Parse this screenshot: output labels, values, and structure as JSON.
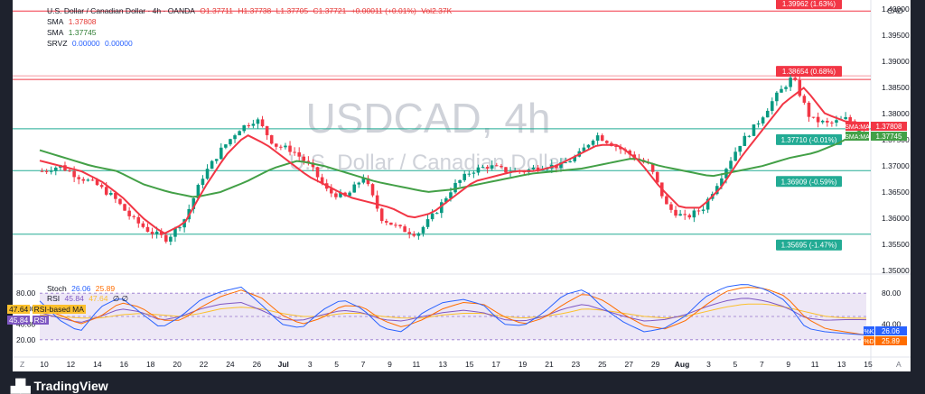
{
  "header": {
    "symbol_desc": "U.S. Dollar / Canadian Dollar · 4h · OANDA",
    "ohlc": {
      "o": "O1.37711",
      "h": "H1.37738",
      "l": "L1.37705",
      "c": "C1.37721",
      "chg": "+0.00011 (+0.01%)",
      "vol": "Vol2.37K"
    },
    "sma1": {
      "label": "SMA",
      "value": "1.37808"
    },
    "sma2": {
      "label": "SMA",
      "value": "1.37745"
    },
    "srvz": {
      "label": "SRVZ",
      "v1": "0.00000",
      "v2": "0.00000"
    },
    "currency": "CAD"
  },
  "watermark": {
    "symbol": "USDCAD, 4h",
    "name": "U.S. Dollar / Canadian Dollar"
  },
  "stoch_legend": {
    "label": "Stoch",
    "k": "26.06",
    "d": "25.89"
  },
  "rsi_legend": {
    "label": "RSI",
    "v1": "45.84",
    "v2": "47.64",
    "v3": "∅ ∅"
  },
  "rsi_ma_tag": {
    "value": "47.64",
    "label": "RSI-based MA"
  },
  "rsi_tag": {
    "value": "45.84",
    "label": "RSI"
  },
  "branding": {
    "logo_text": "TradingView"
  },
  "chart_data": [
    {
      "type": "candlestick",
      "ylim": [
        1.35,
        1.4
      ],
      "yticks": [
        "1.40000",
        "1.39500",
        "1.39000",
        "1.38500",
        "1.38000",
        "1.37500",
        "1.37000",
        "1.36500",
        "1.36000",
        "1.35500",
        "1.35000"
      ],
      "xticks": [
        "10",
        "12",
        "14",
        "16",
        "18",
        "20",
        "22",
        "24",
        "26",
        "Jul",
        "3",
        "5",
        "7",
        "9",
        "11",
        "13",
        "15",
        "17",
        "19",
        "21",
        "23",
        "25",
        "27",
        "29",
        "Aug",
        "3",
        "5",
        "7",
        "9",
        "11",
        "13",
        "15"
      ],
      "close_anchors": [
        1.369,
        1.37,
        1.368,
        1.3665,
        1.364,
        1.36,
        1.3575,
        1.356,
        1.36,
        1.368,
        1.373,
        1.377,
        1.379,
        1.374,
        1.373,
        1.37,
        1.365,
        1.364,
        1.368,
        1.36,
        1.358,
        1.357,
        1.361,
        1.366,
        1.369,
        1.37,
        1.369,
        1.369,
        1.37,
        1.37,
        1.372,
        1.376,
        1.374,
        1.372,
        1.37,
        1.362,
        1.36,
        1.362,
        1.368,
        1.374,
        1.378,
        1.383,
        1.387,
        1.379,
        1.378,
        1.379,
        1.3772
      ],
      "sma_fast_anchors": [
        1.371,
        1.37,
        1.369,
        1.367,
        1.364,
        1.36,
        1.357,
        1.359,
        1.366,
        1.372,
        1.376,
        1.374,
        1.371,
        1.368,
        1.366,
        1.364,
        1.363,
        1.362,
        1.36,
        1.361,
        1.364,
        1.367,
        1.368,
        1.369,
        1.369,
        1.37,
        1.372,
        1.374,
        1.374,
        1.371,
        1.366,
        1.362,
        1.362,
        1.366,
        1.372,
        1.377,
        1.382,
        1.385,
        1.38,
        1.3785,
        1.37808
      ],
      "sma_slow_anchors": [
        1.373,
        1.3715,
        1.37,
        1.369,
        1.3665,
        1.365,
        1.364,
        1.365,
        1.367,
        1.3695,
        1.371,
        1.37,
        1.3685,
        1.367,
        1.366,
        1.365,
        1.3655,
        1.3665,
        1.3675,
        1.3685,
        1.369,
        1.3695,
        1.3705,
        1.3715,
        1.37,
        1.369,
        1.368,
        1.369,
        1.37,
        1.3715,
        1.3725,
        1.3745,
        1.37745
      ],
      "levels": [
        {
          "price": 1.39962,
          "label": "1.39962 (1.63%)",
          "color": "#f23645"
        },
        {
          "price": 1.38654,
          "label": "1.38654 (0.68%)",
          "color": "#f23645"
        },
        {
          "price": 1.3771,
          "label": "1.37710 (-0.01%)",
          "color": "#22ab94"
        },
        {
          "price": 1.36909,
          "label": "1.36909 (-0.59%)",
          "color": "#22ab94"
        },
        {
          "price": 1.35695,
          "label": "1.35695 (-1.47%)",
          "color": "#22ab94"
        }
      ],
      "tags": [
        {
          "name": "SMA:MA",
          "value": "1.37808",
          "color": "#f23645"
        },
        {
          "name": "SMA:MA",
          "value": "1.37745",
          "color": "#43a047"
        }
      ],
      "colors": {
        "up": "#089981",
        "down": "#f23645",
        "sma_fast": "#f23645",
        "sma_slow": "#43a047",
        "level_red": "#f23645",
        "level_green": "#22ab94"
      }
    },
    {
      "type": "line",
      "ylim": [
        0,
        100
      ],
      "yticks": [
        "80.00",
        "60.00",
        "40.00",
        "20.00"
      ],
      "right_ticks": [
        "80.00",
        "40.00"
      ],
      "band": [
        20,
        80
      ],
      "stoch_k_anchors": [
        70,
        45,
        30,
        62,
        75,
        55,
        35,
        50,
        72,
        82,
        88,
        65,
        40,
        35,
        58,
        72,
        60,
        35,
        30,
        55,
        68,
        72,
        65,
        40,
        38,
        55,
        78,
        85,
        60,
        42,
        30,
        35,
        50,
        75,
        88,
        92,
        85,
        70,
        35,
        30,
        28,
        26
      ],
      "stoch_d_anchors": [
        60,
        52,
        40,
        50,
        68,
        62,
        45,
        45,
        62,
        76,
        84,
        74,
        52,
        40,
        48,
        64,
        63,
        45,
        36,
        46,
        60,
        68,
        66,
        50,
        40,
        48,
        66,
        80,
        70,
        52,
        38,
        34,
        44,
        64,
        82,
        88,
        86,
        76,
        48,
        34,
        30,
        26
      ],
      "rsi_anchors": [
        55,
        48,
        42,
        50,
        60,
        56,
        45,
        50,
        60,
        66,
        68,
        58,
        46,
        45,
        52,
        58,
        55,
        46,
        44,
        50,
        55,
        58,
        55,
        46,
        44,
        50,
        60,
        66,
        58,
        50,
        44,
        46,
        52,
        62,
        70,
        74,
        70,
        62,
        48,
        45,
        46,
        45.84
      ],
      "rsi_ma_anchors": [
        52,
        50,
        48,
        48,
        52,
        54,
        52,
        50,
        54,
        60,
        62,
        60,
        54,
        50,
        50,
        54,
        54,
        50,
        48,
        48,
        52,
        54,
        54,
        50,
        48,
        50,
        54,
        60,
        58,
        54,
        50,
        48,
        50,
        56,
        62,
        66,
        66,
        62,
        56,
        50,
        48,
        47.64
      ],
      "tags": [
        {
          "name": "%K",
          "value": "26.06",
          "color": "#2962ff"
        },
        {
          "name": "%D",
          "value": "25.89",
          "color": "#ff6d00"
        }
      ],
      "colors": {
        "k": "#2962ff",
        "d": "#ff6d00",
        "rsi": "#7e57c2",
        "rsi_ma": "#fbc02d",
        "band": "#d1c4e9"
      }
    }
  ]
}
